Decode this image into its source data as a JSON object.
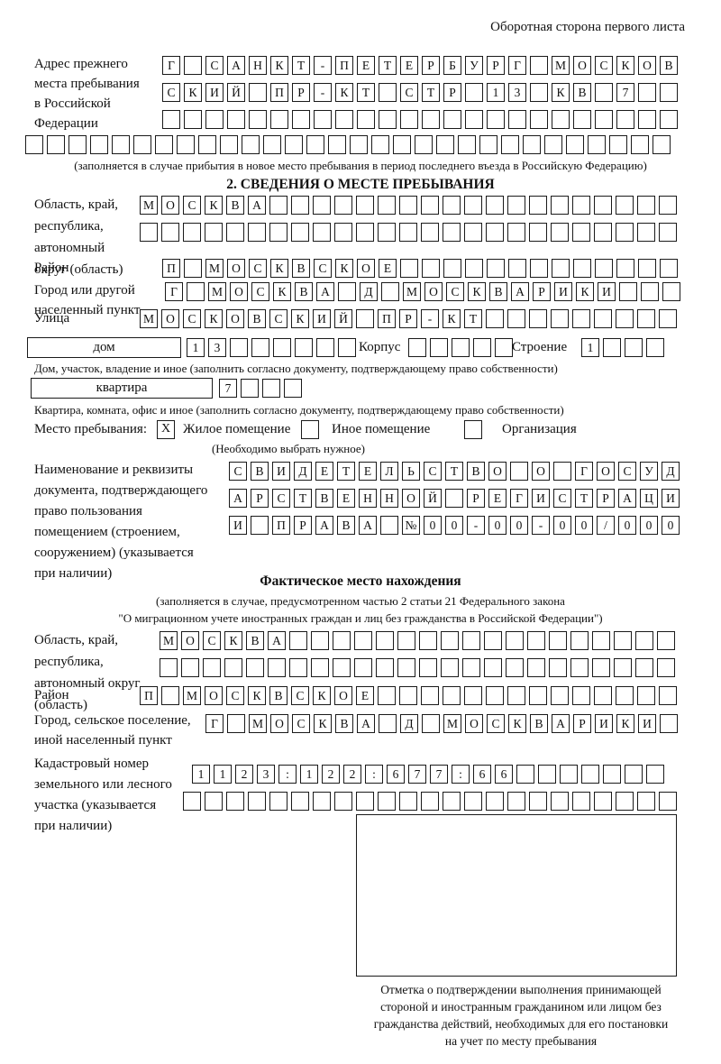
{
  "page": {
    "corner_note": "Оборотная сторона первого листа",
    "colors": {
      "ink": "#1a1a1a",
      "paper": "#ffffff"
    }
  },
  "prev_address": {
    "label_lines": [
      "Адрес прежнего",
      "места пребывания",
      "в Российской",
      "Федерации"
    ],
    "rows": [
      {
        "chars": "Г САНКТ-ПЕТЕРБУРГ МОСКОВ",
        "count": 24
      },
      {
        "chars": "СКИЙ ПР-КТ СТР 13 КВ 7",
        "count": 24
      },
      {
        "chars": "",
        "count": 24
      },
      {
        "chars": "",
        "count": 30
      }
    ],
    "note": "(заполняется в случае прибытия в новое место пребывания в период последнего въезда в Российскую Федерацию)"
  },
  "section2": {
    "title": "2. СВЕДЕНИЯ О МЕСТЕ ПРЕБЫВАНИЯ",
    "region": {
      "label_lines": [
        "Область, край,",
        "республика,",
        "автономный",
        "округ (область)"
      ],
      "rows": [
        {
          "chars": "МОСКВА",
          "count": 25
        },
        {
          "chars": "",
          "count": 25
        }
      ]
    },
    "district": {
      "label": "Район",
      "row": {
        "chars": "П МОСКВСКОЕ",
        "count": 24
      }
    },
    "city": {
      "label_lines": [
        "Город или другой",
        "населенный пункт"
      ],
      "row": {
        "chars": "Г МОСКВА Д МОСКВАРИКИ",
        "count": 24
      }
    },
    "street": {
      "label": "Улица",
      "row": {
        "chars": "МОСКОВСКИЙ ПР-КТ",
        "count": 25
      }
    },
    "house": {
      "box_label": "дом",
      "cells": {
        "chars": "13",
        "count": 8
      },
      "korpus_label": "Корпус",
      "korpus_cells": {
        "chars": "",
        "count": 5
      },
      "stroenie_label": "Строение",
      "stroenie_cells": {
        "chars": "1",
        "count": 4
      },
      "note": "Дом, участок, владение и иное (заполнить согласно документу, подтверждающему право собственности)"
    },
    "apartment": {
      "box_label": "квартира",
      "cells": {
        "chars": "7",
        "count": 4
      },
      "note": "Квартира, комната, офис и иное (заполнить согласно документу, подтверждающему право собственности)"
    },
    "place_type": {
      "label": "Место пребывания:",
      "options": [
        {
          "label": "Жилое помещение",
          "checked": "X"
        },
        {
          "label": "Иное помещение",
          "checked": ""
        },
        {
          "label": "Организация",
          "checked": ""
        }
      ],
      "note": "(Необходимо выбрать нужное)"
    },
    "doc": {
      "label_lines": [
        "Наименование и реквизиты",
        "документа, подтверждающего",
        "право пользования",
        "помещением (строением,",
        "сооружением) (указывается",
        "при наличии)"
      ],
      "rows": [
        {
          "chars": "СВИДЕТЕЛЬСТВО О ГОСУД",
          "count": 21
        },
        {
          "chars": "АРСТВЕННОЙ РЕГИСТРАЦИ",
          "count": 21
        },
        {
          "chars": "И ПРАВА №00-00-00/000",
          "count": 21
        }
      ]
    }
  },
  "section3": {
    "title": "Фактическое место нахождения",
    "note_lines": [
      "(заполняется в случае, предусмотренном частью 2 статьи 21 Федерального закона",
      "\"О миграционном учете иностранных граждан и лиц без гражданства в Российской Федерации\")"
    ],
    "region": {
      "label_lines": [
        "Область, край,",
        "республика,",
        "автономный округ",
        "(область)"
      ],
      "rows": [
        {
          "chars": "МОСКВА",
          "count": 24
        },
        {
          "chars": "",
          "count": 24
        }
      ]
    },
    "district": {
      "label": "Район",
      "row": {
        "chars": "П МОСКВСКОЕ",
        "count": 25
      }
    },
    "city": {
      "label_lines": [
        "Город, сельское поселение,",
        "иной населенный пункт"
      ],
      "row": {
        "chars": "Г МОСКВА Д МОСКВАРИКИ",
        "count": 22
      }
    },
    "cadastre": {
      "label_lines": [
        "Кадастровый номер",
        "земельного или лесного",
        "участка (указывается",
        "при наличии)"
      ],
      "rows": [
        {
          "chars": "1123:122:677:66",
          "count": 22
        },
        {
          "chars": "",
          "count": 23
        }
      ]
    },
    "stamp_caption_lines": [
      "Отметка о подтверждении выполнения принимающей",
      "стороной и иностранным гражданином или лицом без",
      "гражданства действий, необходимых для его постановки",
      "на учет по месту пребывания"
    ]
  }
}
